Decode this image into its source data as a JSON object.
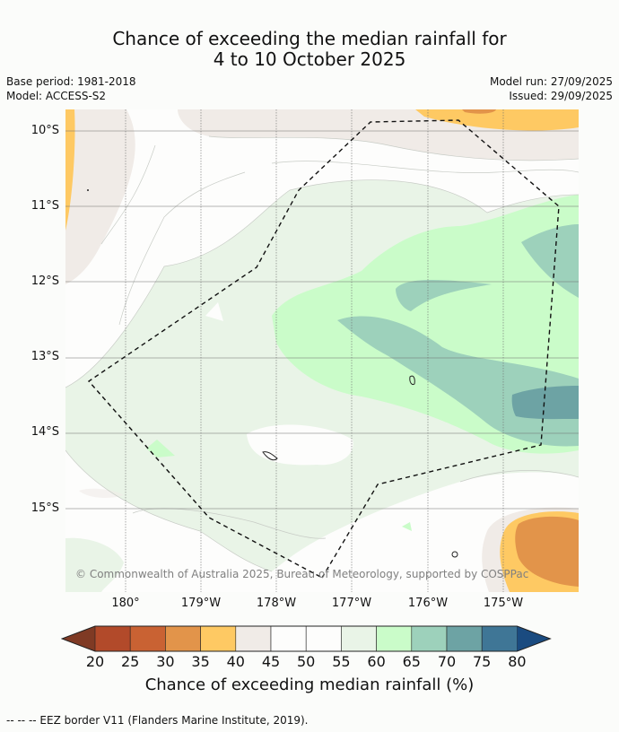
{
  "title": {
    "line1": "Chance of exceeding the median rainfall for",
    "line2": "4 to 10 October 2025"
  },
  "meta": {
    "base_period": "Base period: 1981-2018",
    "model": "Model: ACCESS-S2",
    "model_run": "Model run: 27/09/2025",
    "issued": "Issued: 29/09/2025"
  },
  "axes": {
    "lat_labels": [
      "10°S",
      "11°S",
      "12°S",
      "13°S",
      "14°S",
      "15°S"
    ],
    "lon_labels": [
      "180°",
      "179°W",
      "178°W",
      "177°W",
      "176°W",
      "175°W"
    ]
  },
  "copyright": "© Commonwealth of Australia 2025, Bureau of Meteorology, supported by COSPPac",
  "colorbar": {
    "ticks": [
      "20",
      "25",
      "30",
      "35",
      "40",
      "45",
      "50",
      "55",
      "60",
      "65",
      "70",
      "75",
      "80"
    ],
    "colors": [
      "#7f3a24",
      "#b24a2a",
      "#c96233",
      "#e2944a",
      "#fec963",
      "#f0ebe7",
      "#fdfdfc",
      "#fdfdfc",
      "#e9f4e7",
      "#cafcc9",
      "#9dd1bb",
      "#6da3a4",
      "#3f7696",
      "#1a4b80"
    ],
    "title": "Chance of exceeding median rainfall (%)"
  },
  "legend": "--  --  -- EEZ border V11 (Flanders Marine Institute, 2019)."
}
